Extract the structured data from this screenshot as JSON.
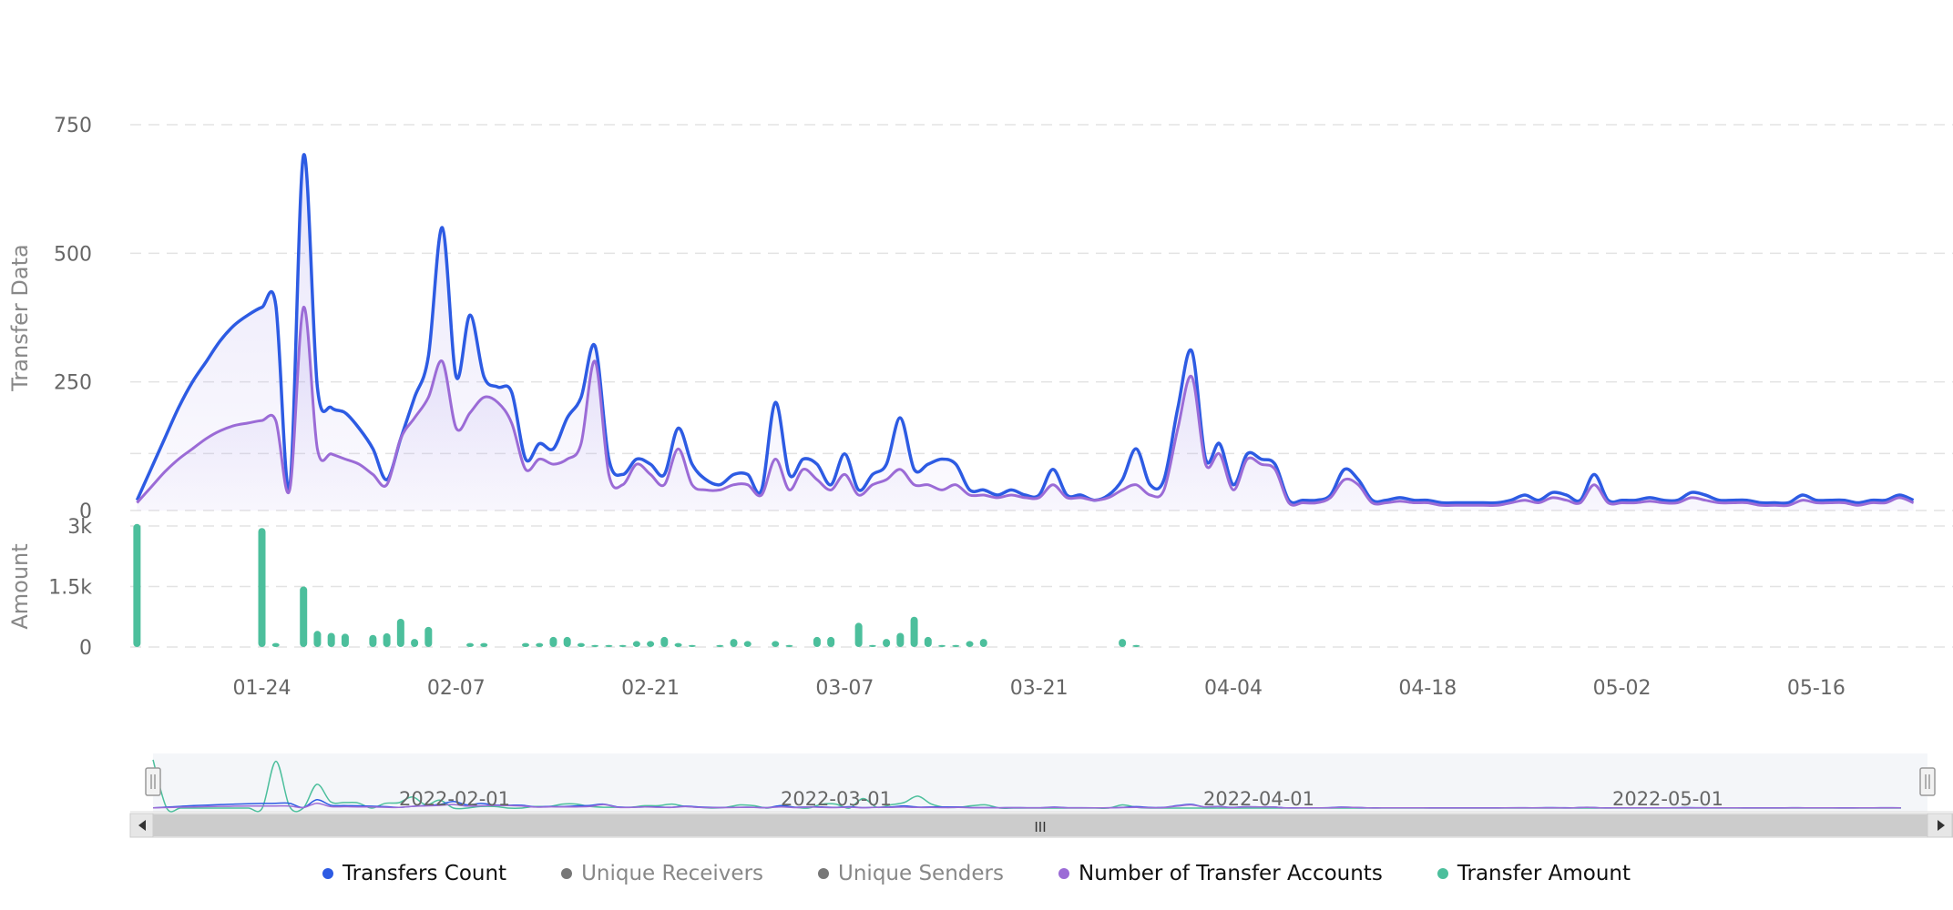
{
  "colors": {
    "transfers_count": "#2d5be3",
    "unique_receivers": "#777777",
    "unique_senders": "#777777",
    "transfer_accounts": "#9b6bd6",
    "transfer_amount": "#4cbf9c",
    "grid": "#e3e3e3"
  },
  "legend": [
    {
      "label": "Transfers Count",
      "color": "#2d5be3",
      "active": true
    },
    {
      "label": "Unique Receivers",
      "color": "#777777",
      "active": false
    },
    {
      "label": "Unique Senders",
      "color": "#777777",
      "active": false
    },
    {
      "label": "Number of Transfer Accounts",
      "color": "#9b6bd6",
      "active": true
    },
    {
      "label": "Transfer Amount",
      "color": "#4cbf9c",
      "active": true
    }
  ],
  "navigator": {
    "labels": [
      "2022-02-01",
      "2022-03-01",
      "2022-04-01",
      "2022-05-01"
    ],
    "scroll_grip": "III"
  },
  "chart_data": {
    "type": "line",
    "start_date": "2022-01-15",
    "x_tick_labels": [
      "01-24",
      "02-07",
      "02-21",
      "03-07",
      "03-21",
      "04-04",
      "04-18",
      "05-02",
      "05-16"
    ],
    "top_panel": {
      "ylabel": "Transfer Data",
      "y_ticks": [
        "0",
        "250",
        "500",
        "750"
      ],
      "ylim": [
        0,
        750
      ],
      "series": [
        {
          "name": "Transfers Count",
          "values": [
            20,
            80,
            140,
            200,
            250,
            290,
            330,
            360,
            380,
            395,
            400,
            45,
            690,
            240,
            200,
            190,
            160,
            120,
            60,
            140,
            220,
            300,
            550,
            260,
            380,
            260,
            240,
            230,
            100,
            130,
            120,
            180,
            220,
            320,
            100,
            70,
            100,
            90,
            70,
            160,
            90,
            60,
            50,
            70,
            70,
            40,
            210,
            70,
            100,
            90,
            50,
            110,
            40,
            70,
            90,
            180,
            80,
            90,
            100,
            90,
            40,
            40,
            30,
            40,
            30,
            30,
            80,
            30,
            30,
            20,
            30,
            60,
            120,
            50,
            60,
            200,
            310,
            100,
            130,
            50,
            110,
            100,
            90,
            20,
            20,
            20,
            30,
            80,
            60,
            20,
            20,
            25,
            20,
            20,
            15,
            15,
            15,
            15,
            15,
            20,
            30,
            20,
            35,
            30,
            20,
            70,
            20,
            20,
            20,
            25,
            20,
            20,
            35,
            30,
            20,
            20,
            20,
            15,
            15,
            15,
            30,
            20,
            20,
            20,
            15,
            20,
            20,
            30,
            20
          ],
          "color": "#2d5be3"
        },
        {
          "name": "Number of Transfer Accounts",
          "values": [
            15,
            45,
            75,
            100,
            120,
            140,
            155,
            165,
            170,
            175,
            175,
            40,
            395,
            120,
            110,
            100,
            90,
            70,
            50,
            140,
            180,
            220,
            290,
            160,
            190,
            220,
            210,
            170,
            80,
            100,
            90,
            100,
            130,
            290,
            70,
            50,
            90,
            70,
            50,
            120,
            50,
            40,
            40,
            50,
            50,
            30,
            100,
            40,
            80,
            60,
            40,
            70,
            30,
            50,
            60,
            80,
            50,
            50,
            40,
            50,
            30,
            30,
            25,
            30,
            25,
            25,
            50,
            25,
            25,
            20,
            25,
            40,
            50,
            30,
            40,
            160,
            260,
            90,
            110,
            40,
            100,
            90,
            80,
            15,
            15,
            15,
            25,
            60,
            50,
            15,
            15,
            18,
            15,
            15,
            10,
            10,
            10,
            10,
            10,
            15,
            20,
            15,
            25,
            20,
            15,
            50,
            15,
            15,
            15,
            18,
            15,
            15,
            25,
            20,
            15,
            15,
            15,
            10,
            10,
            10,
            20,
            15,
            15,
            15,
            10,
            15,
            15,
            25,
            15
          ],
          "color": "#9b6bd6"
        }
      ]
    },
    "bottom_panel": {
      "ylabel": "Amount",
      "y_ticks": [
        "0",
        "1.5k",
        "3k"
      ],
      "ylim": [
        0,
        3000
      ],
      "series": [
        {
          "name": "Transfer Amount",
          "type": "bar",
          "values": [
            3050,
            0,
            0,
            0,
            0,
            0,
            0,
            0,
            0,
            2950,
            100,
            0,
            1500,
            400,
            350,
            330,
            0,
            300,
            340,
            700,
            200,
            500,
            0,
            0,
            100,
            100,
            0,
            0,
            100,
            100,
            250,
            250,
            100,
            50,
            50,
            50,
            150,
            150,
            250,
            100,
            50,
            0,
            50,
            200,
            150,
            0,
            150,
            50,
            0,
            250,
            250,
            0,
            600,
            50,
            200,
            350,
            750,
            250,
            50,
            50,
            150,
            200,
            0,
            0,
            0,
            0,
            0,
            0,
            0,
            0,
            0,
            200,
            50,
            0,
            0,
            0,
            0,
            0,
            0,
            0,
            0,
            0,
            0,
            0,
            0,
            0,
            0,
            0,
            0,
            0,
            0,
            0,
            0,
            0,
            0,
            0,
            0,
            0,
            0,
            0,
            0,
            0,
            0,
            0,
            0,
            0,
            0,
            0,
            0,
            0,
            0,
            0,
            0,
            0,
            0,
            0,
            0,
            0,
            0,
            0,
            0,
            0,
            0,
            0,
            0,
            0,
            0,
            0,
            0,
            0,
            0,
            0,
            0,
            0,
            0,
            0,
            0,
            0,
            0,
            0,
            0,
            0,
            0,
            0
          ],
          "color": "#4cbf9c"
        }
      ]
    },
    "legend_position": "bottom-center",
    "grid": true
  }
}
